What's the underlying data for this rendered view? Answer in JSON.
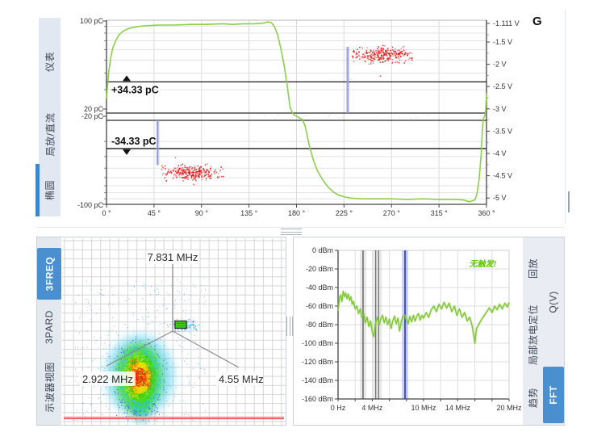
{
  "top_panel": {
    "corner_label": "G",
    "tabs": [
      {
        "label": "仪表",
        "selected": false
      },
      {
        "label": "局放/直流",
        "selected": false
      },
      {
        "label": "椭圆",
        "selected": true
      }
    ]
  },
  "bottom_left_panel": {
    "tabs": [
      {
        "label": "3FREQ",
        "selected": true
      },
      {
        "label": "3PARD",
        "selected": false
      },
      {
        "label": "示波器视图",
        "selected": false
      }
    ]
  },
  "bottom_right_panel": {
    "inner_tabs": [
      {
        "label": "回放",
        "selected": false
      },
      {
        "label": "局部放电定位",
        "selected": false
      },
      {
        "label": "趋势",
        "selected": false
      }
    ],
    "outer_tabs": [
      {
        "label": "Q(V)",
        "selected": false
      },
      {
        "label": "FFT",
        "selected": true
      }
    ]
  },
  "colors": {
    "accent_blue": "#4a90d0",
    "tab_strip_bg": "#e4e9f1",
    "tab_text": "#3c4656",
    "waveform_green": "#8ccf4a",
    "spectrum_green": "#7dc62f",
    "pd_red": "#e11212",
    "cursor_blue": "#8890dc",
    "threshold_black": "#1a1a1a",
    "no_trigger_green": "#58c400",
    "grid_gray": "#dcdcdc"
  },
  "chart_data": [
    {
      "type": "line",
      "name": "prpd-ellipse-view",
      "x_tick_labels": [
        "0 °",
        "45 °",
        "90 °",
        "135 °",
        "180 °",
        "225 °",
        "270 °",
        "315 °",
        "360 °"
      ],
      "x_range_deg": [
        0,
        360
      ],
      "y_left_tick_labels": [
        "100 pC",
        "20 pC",
        "-20 pC",
        "-100 pC"
      ],
      "y_right_tick_labels": [
        "-1.111 V",
        "-1.5 V",
        "-2 V",
        "-2.5 V",
        "-3 V",
        "-3.5 V",
        "-4 V",
        "-4.5 V",
        "-5 V"
      ],
      "scale_note": "split log charge scale with gap between -20 pC and +20 pC",
      "thresholds": [
        {
          "label": "+34.33 pC",
          "pC": 34.33
        },
        {
          "label": "-34.33 pC",
          "pC": -34.33
        }
      ],
      "cursors_deg": [
        48.5,
        228.5
      ],
      "series": [
        {
          "name": "voltage-waveform",
          "points_deg_pC": [
            [
              0,
              26
            ],
            [
              2,
              40
            ],
            [
              4,
              52
            ],
            [
              6,
              62
            ],
            [
              9,
              71
            ],
            [
              12,
              78
            ],
            [
              16,
              83
            ],
            [
              20,
              86
            ],
            [
              25,
              88
            ],
            [
              32,
              90
            ],
            [
              40,
              91
            ],
            [
              50,
              92
            ],
            [
              65,
              92
            ],
            [
              80,
              93
            ],
            [
              95,
              93
            ],
            [
              110,
              94
            ],
            [
              120,
              93
            ],
            [
              130,
              94
            ],
            [
              140,
              94
            ],
            [
              148,
              95
            ],
            [
              153,
              97
            ],
            [
              156,
              96
            ],
            [
              159,
              90
            ],
            [
              162,
              78
            ],
            [
              165,
              62
            ],
            [
              168,
              47
            ],
            [
              171,
              33
            ],
            [
              174,
              22
            ],
            [
              177,
              12
            ],
            [
              180,
              3
            ],
            [
              182,
              -4
            ],
            [
              185,
              -13
            ],
            [
              188,
              -22
            ],
            [
              192,
              -32
            ],
            [
              196,
              -43
            ],
            [
              200,
              -53
            ],
            [
              205,
              -63
            ],
            [
              210,
              -72
            ],
            [
              215,
              -79
            ],
            [
              220,
              -84
            ],
            [
              226,
              -87
            ],
            [
              233,
              -89
            ],
            [
              242,
              -90
            ],
            [
              255,
              -90
            ],
            [
              270,
              -90
            ],
            [
              285,
              -91
            ],
            [
              300,
              -90
            ],
            [
              315,
              -91
            ],
            [
              330,
              -91
            ],
            [
              338,
              -92
            ],
            [
              344,
              -95
            ],
            [
              349,
              -92
            ],
            [
              351,
              -82
            ],
            [
              353,
              -62
            ],
            [
              355,
              -38
            ],
            [
              356,
              -24
            ],
            [
              357,
              -10
            ],
            [
              358,
              2
            ],
            [
              359,
              14
            ],
            [
              360,
              28
            ]
          ]
        }
      ],
      "pd_clusters": [
        {
          "phase_deg": [
            229,
            293
          ],
          "charge_pC": [
            47,
            63
          ],
          "count": 280
        },
        {
          "phase_deg": [
            49,
            113
          ],
          "charge_pC": [
            -63,
            -47
          ],
          "count": 280
        }
      ]
    },
    {
      "type": "scatter",
      "name": "3freq-star-diagram",
      "axis_labels": [
        "7.831 MHz",
        "2.922 MHz",
        "4.55 MHz"
      ],
      "selection_box": "green",
      "cluster_note": "dense PD cluster on lower-left 2.922 MHz axis, rainbow density scale"
    },
    {
      "type": "line",
      "name": "fft-spectrum",
      "x_tick_labels": [
        "0 Hz",
        "4 MHz",
        "10 MHz",
        "14 MHz",
        "20 MHz"
      ],
      "x_tick_mhz": [
        0,
        4,
        10,
        14,
        20
      ],
      "x_range_mhz": [
        0,
        20
      ],
      "y_tick_labels": [
        "0 dBm",
        "-20 dBm",
        "-40 dBm",
        "-60 dBm",
        "-80 dBm",
        "-100 dBm",
        "-120 dBm",
        "-140 dBm",
        "-160 dBm"
      ],
      "y_range_dbm": [
        -160,
        0
      ],
      "status_text": "无触发!",
      "markers": [
        {
          "mhz": 2.922,
          "style": "gray-band"
        },
        {
          "mhz": 4.55,
          "style": "gray-band"
        },
        {
          "mhz": 7.831,
          "style": "blue-band"
        }
      ],
      "series": [
        {
          "name": "spectrum",
          "points_mhz_dbm": [
            [
              0,
              -65
            ],
            [
              0.15,
              -52
            ],
            [
              0.3,
              -48
            ],
            [
              0.45,
              -55
            ],
            [
              0.6,
              -44
            ],
            [
              0.75,
              -50
            ],
            [
              0.9,
              -46
            ],
            [
              1.05,
              -52
            ],
            [
              1.2,
              -47
            ],
            [
              1.35,
              -54
            ],
            [
              1.5,
              -50
            ],
            [
              1.65,
              -58
            ],
            [
              1.8,
              -55
            ],
            [
              2,
              -63
            ],
            [
              2.2,
              -60
            ],
            [
              2.4,
              -68
            ],
            [
              2.6,
              -63
            ],
            [
              2.8,
              -72
            ],
            [
              3,
              -68
            ],
            [
              3.2,
              -78
            ],
            [
              3.4,
              -72
            ],
            [
              3.6,
              -82
            ],
            [
              3.8,
              -76
            ],
            [
              4,
              -88
            ],
            [
              4.2,
              -93
            ],
            [
              4.4,
              -78
            ],
            [
              4.6,
              -72
            ],
            [
              4.8,
              -80
            ],
            [
              5,
              -74
            ],
            [
              5.2,
              -70
            ],
            [
              5.4,
              -78
            ],
            [
              5.6,
              -72
            ],
            [
              5.8,
              -80
            ],
            [
              6,
              -74
            ],
            [
              6.2,
              -84
            ],
            [
              6.4,
              -76
            ],
            [
              6.6,
              -71
            ],
            [
              6.8,
              -79
            ],
            [
              7,
              -73
            ],
            [
              7.2,
              -87
            ],
            [
              7.4,
              -76
            ],
            [
              7.6,
              -71
            ],
            [
              7.8,
              -70
            ],
            [
              8,
              -75
            ],
            [
              8.2,
              -79
            ],
            [
              8.4,
              -71
            ],
            [
              8.6,
              -77
            ],
            [
              8.8,
              -70
            ],
            [
              9,
              -76
            ],
            [
              9.2,
              -71
            ],
            [
              9.4,
              -68
            ],
            [
              9.6,
              -75
            ],
            [
              9.8,
              -70
            ],
            [
              10,
              -73
            ],
            [
              10.3,
              -67
            ],
            [
              10.6,
              -72
            ],
            [
              10.9,
              -64
            ],
            [
              11.2,
              -60
            ],
            [
              11.5,
              -66
            ],
            [
              11.8,
              -58
            ],
            [
              12.1,
              -63
            ],
            [
              12.4,
              -56
            ],
            [
              12.7,
              -62
            ],
            [
              13,
              -57
            ],
            [
              13.3,
              -66
            ],
            [
              13.6,
              -60
            ],
            [
              13.9,
              -70
            ],
            [
              14.2,
              -63
            ],
            [
              14.5,
              -72
            ],
            [
              14.8,
              -67
            ],
            [
              15.1,
              -76
            ],
            [
              15.4,
              -72
            ],
            [
              15.7,
              -82
            ],
            [
              16,
              -100
            ],
            [
              16.2,
              -84
            ],
            [
              16.5,
              -79
            ],
            [
              16.8,
              -74
            ],
            [
              17.1,
              -70
            ],
            [
              17.4,
              -66
            ],
            [
              17.7,
              -62
            ],
            [
              18,
              -67
            ],
            [
              18.3,
              -60
            ],
            [
              18.6,
              -64
            ],
            [
              18.9,
              -58
            ],
            [
              19.2,
              -63
            ],
            [
              19.5,
              -57
            ],
            [
              19.8,
              -61
            ],
            [
              20,
              -56
            ]
          ]
        }
      ]
    }
  ]
}
